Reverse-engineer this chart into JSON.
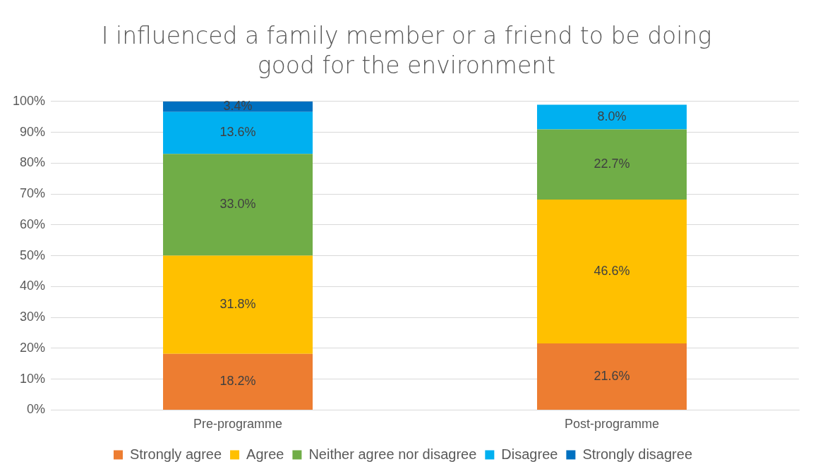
{
  "chart_data": {
    "type": "bar",
    "title": "I influenced a family member or a friend to be doing good for the environment",
    "categories": [
      "Pre-programme",
      "Post-programme"
    ],
    "stacked": true,
    "series": [
      {
        "name": "Strongly agree",
        "color": "#ed7d31",
        "values": [
          18.2,
          21.6
        ],
        "value_labels": [
          "18.2%",
          "21.6%"
        ]
      },
      {
        "name": "Agree",
        "color": "#ffc000",
        "values": [
          31.8,
          46.6
        ],
        "value_labels": [
          "31.8%",
          "46.6%"
        ]
      },
      {
        "name": "Neither agree nor disagree",
        "color": "#70ad47",
        "values": [
          33.0,
          22.7
        ],
        "value_labels": [
          "33.0%",
          "22.7%"
        ]
      },
      {
        "name": "Disagree",
        "color": "#00b0f0",
        "values": [
          13.6,
          8.0
        ],
        "value_labels": [
          "13.6%",
          "8.0%"
        ]
      },
      {
        "name": "Strongly disagree",
        "color": "#0070c0",
        "values": [
          3.4,
          null
        ],
        "value_labels": [
          "3.4%",
          null
        ]
      }
    ],
    "ylim": [
      0,
      100
    ],
    "yticks": [
      {
        "value": 0,
        "label": "0%"
      },
      {
        "value": 10,
        "label": "10%"
      },
      {
        "value": 20,
        "label": "20%"
      },
      {
        "value": 30,
        "label": "30%"
      },
      {
        "value": 40,
        "label": "40%"
      },
      {
        "value": 50,
        "label": "50%"
      },
      {
        "value": 60,
        "label": "60%"
      },
      {
        "value": 70,
        "label": "70%"
      },
      {
        "value": 80,
        "label": "80%"
      },
      {
        "value": 90,
        "label": "90%"
      },
      {
        "value": 100,
        "label": "100%"
      }
    ],
    "grid": "y",
    "legend": "bottom"
  }
}
